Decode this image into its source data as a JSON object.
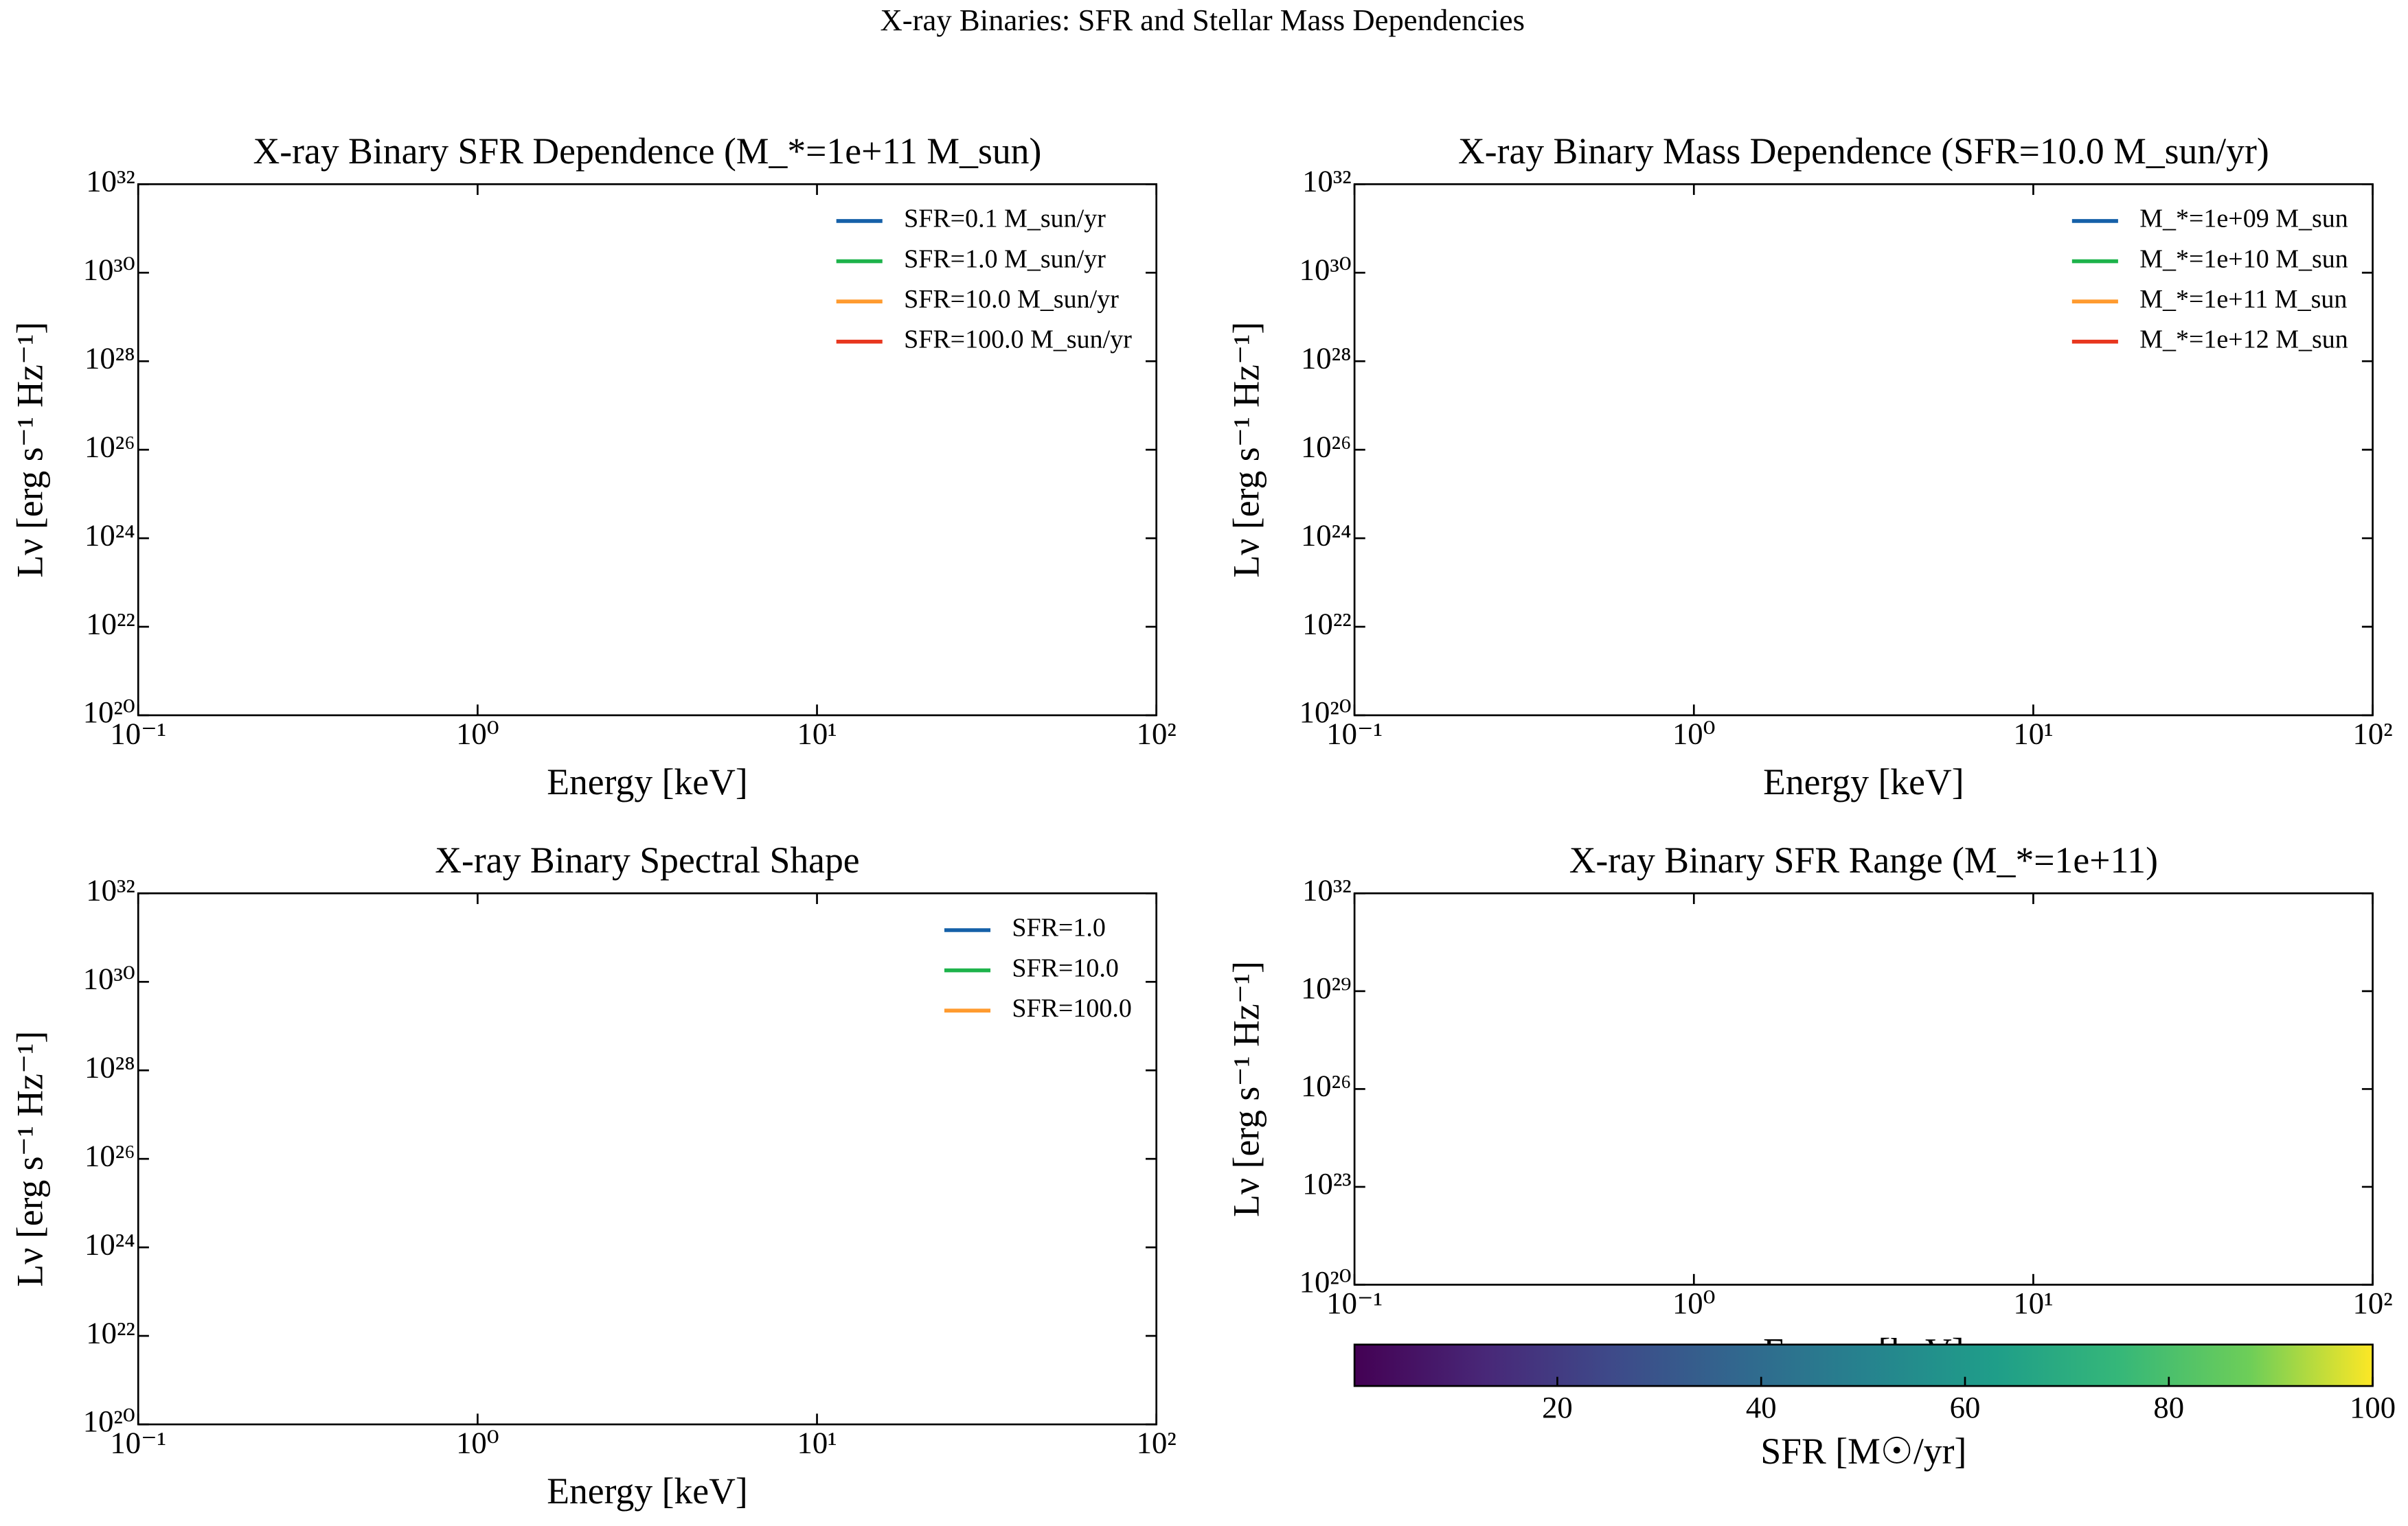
{
  "title": "X-ray Binaries: SFR and Stellar Mass Dependencies",
  "chart_data": [
    {
      "type": "line",
      "title": "X-ray Binary SFR Dependence (M_*=1e+11 M_sun)",
      "xlabel": "Energy [keV]",
      "ylabel": "Lν [erg s⁻¹ Hz⁻¹]",
      "xscale": "log",
      "yscale": "log",
      "xlim": [
        0.1,
        100
      ],
      "ylim": [
        1e+20,
        1e+32
      ],
      "xticks": [
        {
          "value": 0.1,
          "label": "10⁻¹"
        },
        {
          "value": 1,
          "label": "10⁰"
        },
        {
          "value": 10,
          "label": "10¹"
        },
        {
          "value": 100,
          "label": "10²"
        }
      ],
      "yticks": [
        {
          "value": 1e+20,
          "label": "10²⁰"
        },
        {
          "value": 1e+22,
          "label": "10²²"
        },
        {
          "value": 1e+24,
          "label": "10²⁴"
        },
        {
          "value": 1e+26,
          "label": "10²⁶"
        },
        {
          "value": 1e+28,
          "label": "10²⁸"
        },
        {
          "value": 1e+30,
          "label": "10³⁰"
        },
        {
          "value": 1e+32,
          "label": "10³²"
        }
      ],
      "legend": "upper right",
      "series": [
        {
          "name": "SFR=0.1 M_sun/yr",
          "color": "#1560a8"
        },
        {
          "name": "SFR=1.0 M_sun/yr",
          "color": "#1db34b"
        },
        {
          "name": "SFR=10.0 M_sun/yr",
          "color": "#ff9b2f"
        },
        {
          "name": "SFR=100.0 M_sun/yr",
          "color": "#e8361e"
        }
      ]
    },
    {
      "type": "line",
      "title": "X-ray Binary Mass Dependence (SFR=10.0 M_sun/yr)",
      "xlabel": "Energy [keV]",
      "ylabel": "Lν [erg s⁻¹ Hz⁻¹]",
      "xscale": "log",
      "yscale": "log",
      "xlim": [
        0.1,
        100
      ],
      "ylim": [
        1e+20,
        1e+32
      ],
      "xticks": [
        {
          "value": 0.1,
          "label": "10⁻¹"
        },
        {
          "value": 1,
          "label": "10⁰"
        },
        {
          "value": 10,
          "label": "10¹"
        },
        {
          "value": 100,
          "label": "10²"
        }
      ],
      "yticks": [
        {
          "value": 1e+20,
          "label": "10²⁰"
        },
        {
          "value": 1e+22,
          "label": "10²²"
        },
        {
          "value": 1e+24,
          "label": "10²⁴"
        },
        {
          "value": 1e+26,
          "label": "10²⁶"
        },
        {
          "value": 1e+28,
          "label": "10²⁸"
        },
        {
          "value": 1e+30,
          "label": "10³⁰"
        },
        {
          "value": 1e+32,
          "label": "10³²"
        }
      ],
      "legend": "upper right",
      "series": [
        {
          "name": "M_*=1e+09 M_sun",
          "color": "#1560a8"
        },
        {
          "name": "M_*=1e+10 M_sun",
          "color": "#1db34b"
        },
        {
          "name": "M_*=1e+11 M_sun",
          "color": "#ff9b2f"
        },
        {
          "name": "M_*=1e+12 M_sun",
          "color": "#e8361e"
        }
      ]
    },
    {
      "type": "line",
      "title": "X-ray Binary Spectral Shape",
      "xlabel": "Energy [keV]",
      "ylabel": "Lν [erg s⁻¹ Hz⁻¹]",
      "xscale": "log",
      "yscale": "log",
      "xlim": [
        0.1,
        100
      ],
      "ylim": [
        1e+20,
        1e+32
      ],
      "xticks": [
        {
          "value": 0.1,
          "label": "10⁻¹"
        },
        {
          "value": 1,
          "label": "10⁰"
        },
        {
          "value": 10,
          "label": "10¹"
        },
        {
          "value": 100,
          "label": "10²"
        }
      ],
      "yticks": [
        {
          "value": 1e+20,
          "label": "10²⁰"
        },
        {
          "value": 1e+22,
          "label": "10²²"
        },
        {
          "value": 1e+24,
          "label": "10²⁴"
        },
        {
          "value": 1e+26,
          "label": "10²⁶"
        },
        {
          "value": 1e+28,
          "label": "10²⁸"
        },
        {
          "value": 1e+30,
          "label": "10³⁰"
        },
        {
          "value": 1e+32,
          "label": "10³²"
        }
      ],
      "legend": "upper right",
      "series": [
        {
          "name": "SFR=1.0",
          "color": "#1560a8"
        },
        {
          "name": "SFR=10.0",
          "color": "#1db34b"
        },
        {
          "name": "SFR=100.0",
          "color": "#ff9b2f"
        }
      ]
    },
    {
      "type": "line",
      "title": "X-ray Binary SFR Range (M_*=1e+11)",
      "xlabel": "Energy [keV]",
      "ylabel": "Lν [erg s⁻¹ Hz⁻¹]",
      "xscale": "log",
      "yscale": "log",
      "xlim": [
        0.1,
        100
      ],
      "ylim": [
        1e+20,
        1e+32
      ],
      "xticks": [
        {
          "value": 0.1,
          "label": "10⁻¹"
        },
        {
          "value": 1,
          "label": "10⁰"
        },
        {
          "value": 10,
          "label": "10¹"
        },
        {
          "value": 100,
          "label": "10²"
        }
      ],
      "yticks": [
        {
          "value": 1e+20,
          "label": "10²⁰"
        },
        {
          "value": 1e+23,
          "label": "10²³"
        },
        {
          "value": 1e+26,
          "label": "10²⁶"
        },
        {
          "value": 1e+29,
          "label": "10²⁹"
        },
        {
          "value": 1e+32,
          "label": "10³²"
        }
      ],
      "colorbar": {
        "label": "SFR [M☉/yr]",
        "colormap": "viridis",
        "lim": [
          0.1,
          100
        ],
        "ticks": [
          20,
          40,
          60,
          80,
          100
        ]
      }
    }
  ]
}
